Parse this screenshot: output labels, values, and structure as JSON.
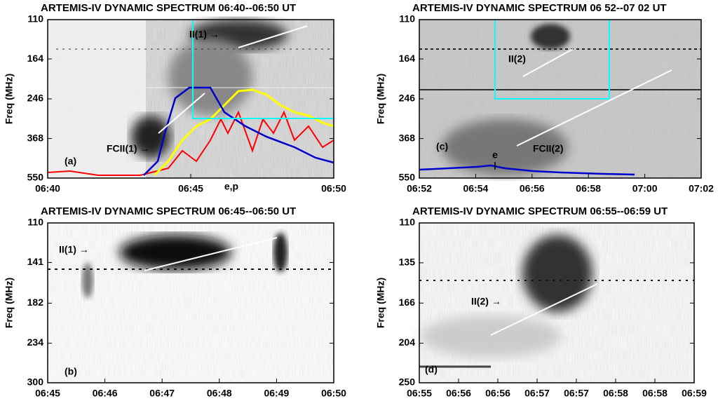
{
  "chart_data": [
    {
      "type": "spectrogram",
      "title": "ARTEMIS-IV DYNAMIC SPECTRUM 06:40--06:50 UT",
      "ylabel": "Freq (MHz)",
      "ylim": [
        110,
        550
      ],
      "yticks": [
        110,
        164,
        246,
        368,
        550
      ],
      "log_y": true,
      "y_inverted": true,
      "xticks": [
        "06:40",
        "06:45",
        "06:50"
      ],
      "annotations": [
        "II(1) →",
        "FCII(1) →",
        "(a)",
        "e,p"
      ]
    },
    {
      "type": "spectrogram",
      "title": "ARTEMIS-IV DYNAMIC SPECTRUM 06 52--07 02 UT",
      "ylabel": "Freq (MHz)",
      "ylim": [
        110,
        550
      ],
      "yticks": [
        110,
        164,
        246,
        368,
        550
      ],
      "log_y": true,
      "y_inverted": true,
      "xticks": [
        "06:52",
        "06:54",
        "06:56",
        "06:58",
        "07:00",
        "07:02"
      ],
      "annotations": [
        "II(2)",
        "(c)",
        "e",
        "FCII(2)"
      ]
    },
    {
      "type": "spectrogram",
      "title": "ARTEMIS-IV DYNAMIC SPECTRUM 06:45--06:50 UT",
      "ylabel": "Freq (MHz)",
      "ylim": [
        110,
        300
      ],
      "yticks": [
        110,
        141,
        182,
        234,
        300
      ],
      "log_y": true,
      "y_inverted": true,
      "xticks": [
        "06:45",
        "06:46",
        "06:47",
        "06:48",
        "06:49",
        "06:50"
      ],
      "annotations": [
        "II(1) →",
        "(b)"
      ]
    },
    {
      "type": "spectrogram",
      "title": "ARTEMIS-IV DYNAMIC SPECTRUM 06:55--06:59 UT",
      "ylabel": "Freq (MHz)",
      "ylim": [
        110,
        250
      ],
      "yticks": [
        110,
        135,
        166,
        204,
        250
      ],
      "log_y": true,
      "y_inverted": true,
      "xticks": [
        "06:55",
        "06:56",
        "06:56",
        "06:57",
        "06:57",
        "06:58",
        "06:58",
        "06:59"
      ],
      "annotations": [
        "II(2) →",
        "(d)"
      ]
    }
  ]
}
